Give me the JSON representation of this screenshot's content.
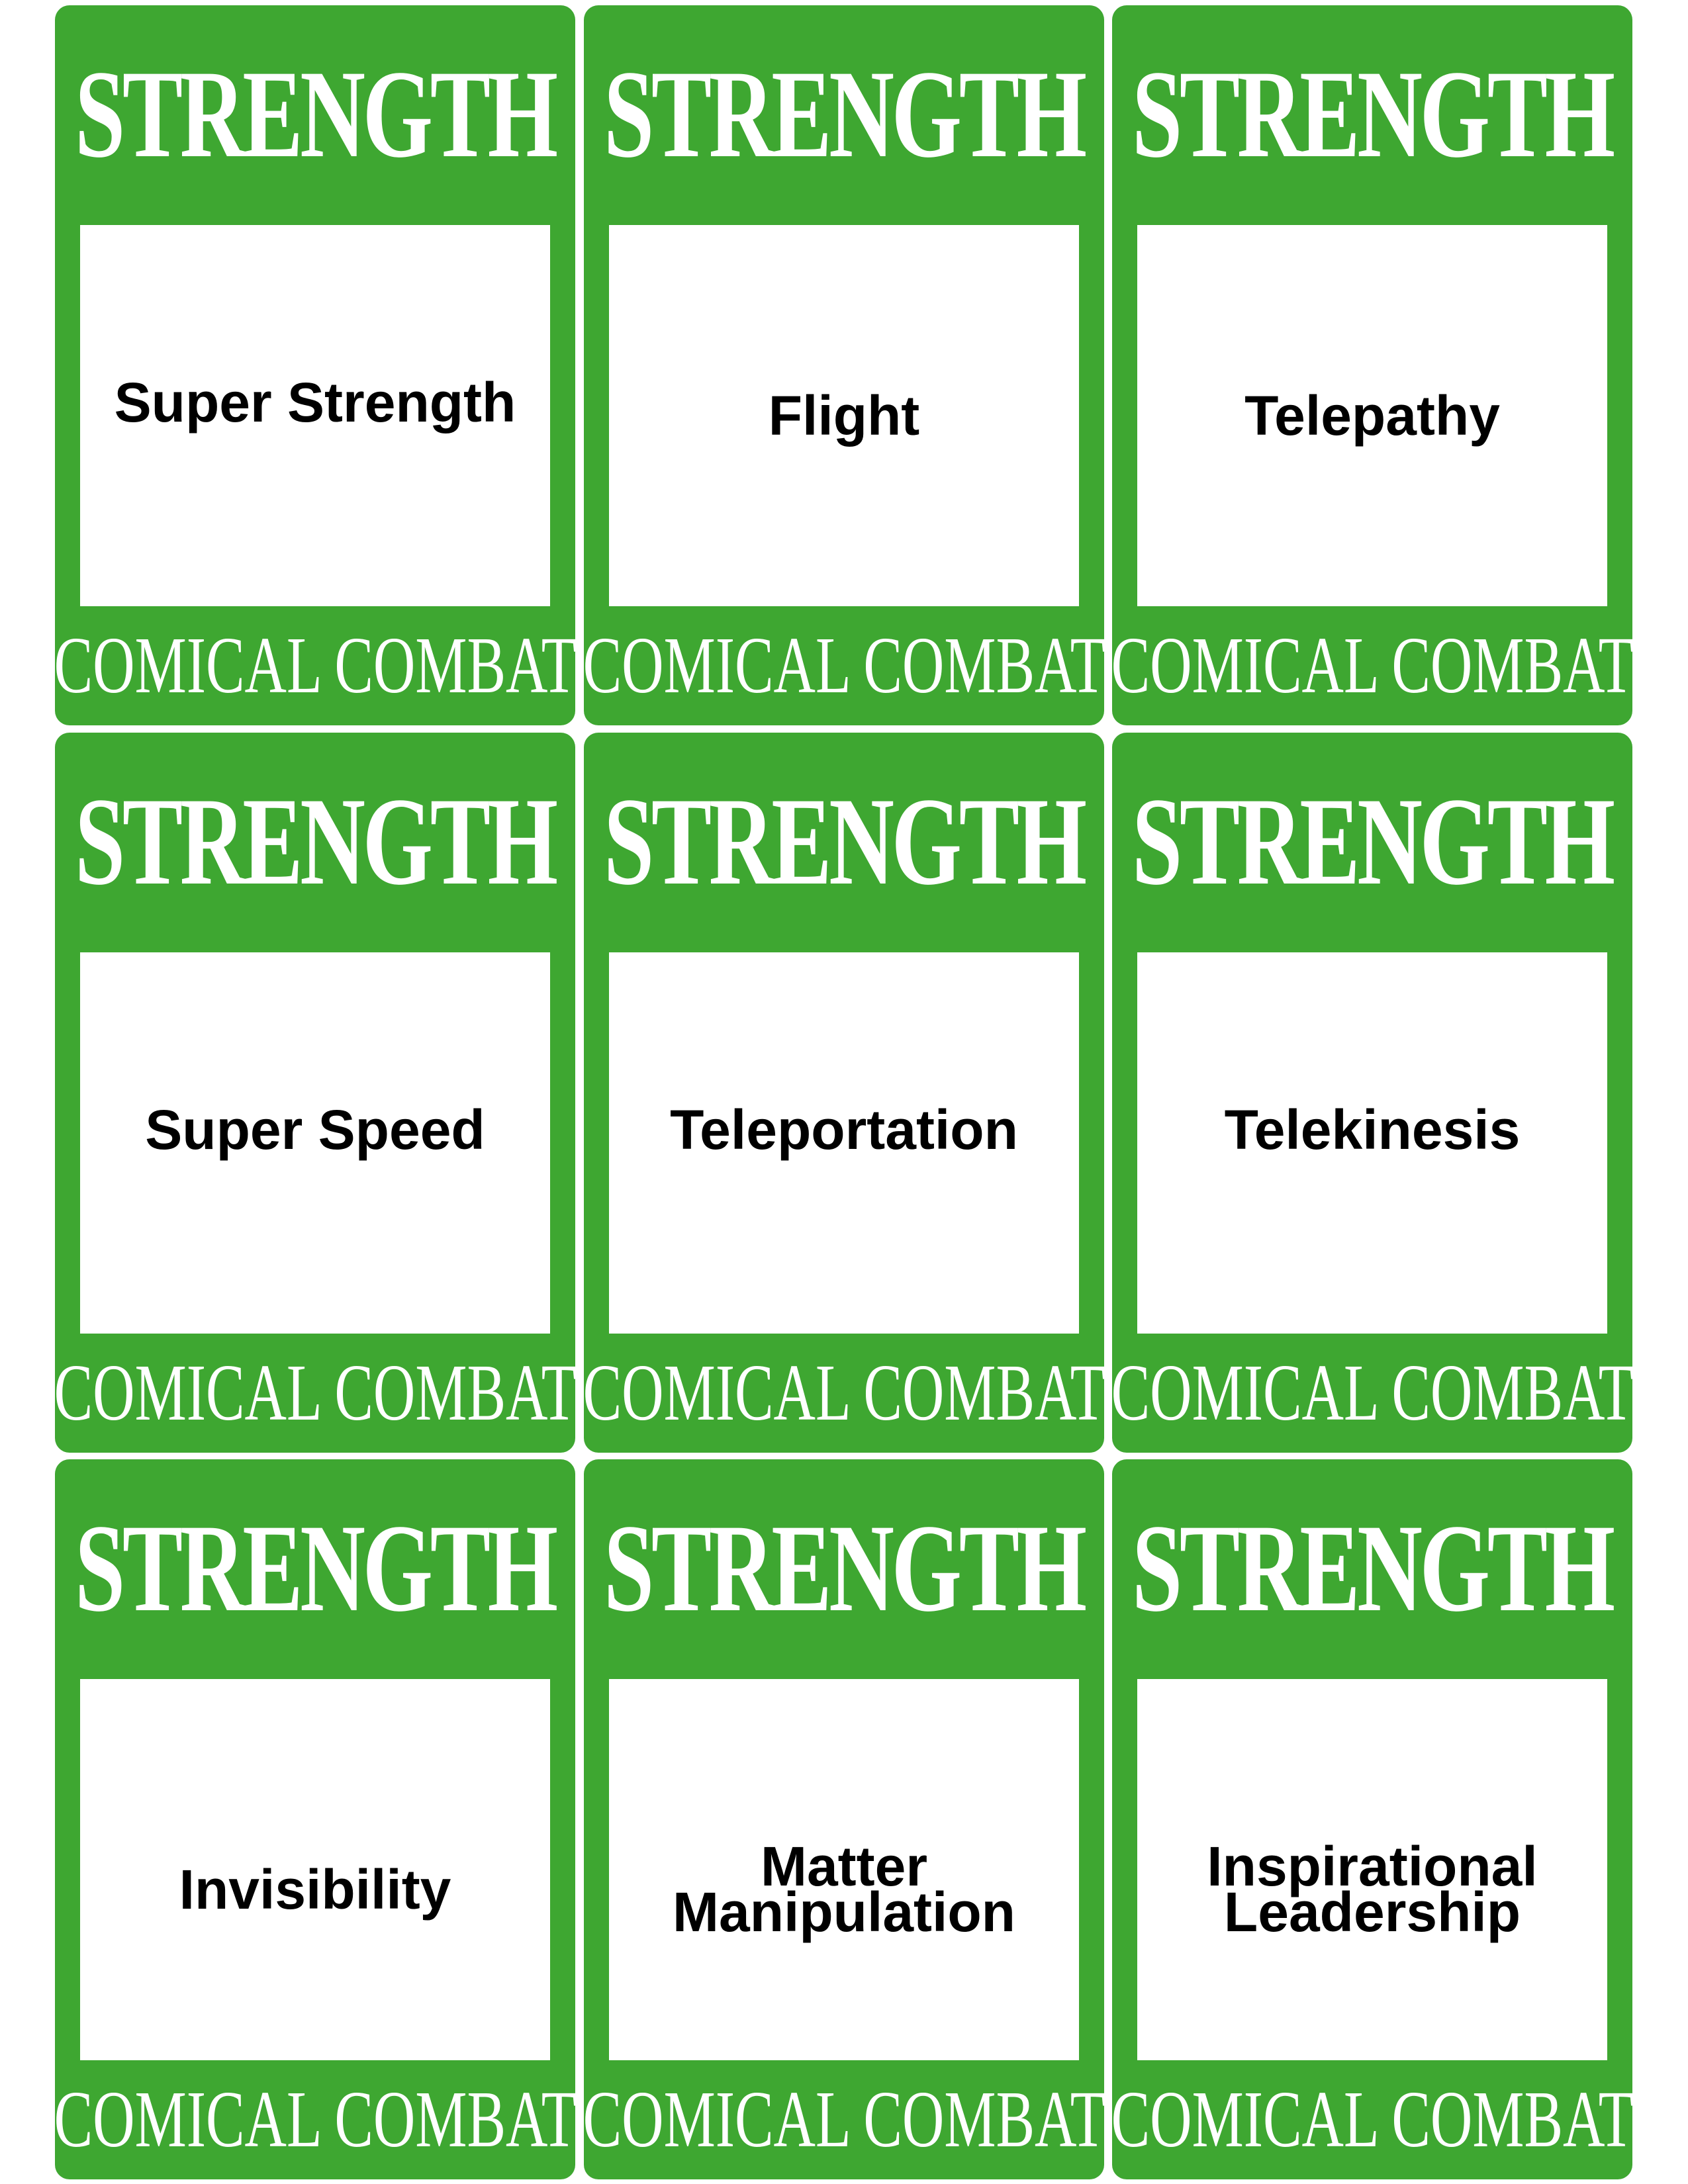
{
  "cards": [
    {
      "category": "STRENGTH",
      "power": "Super Strength",
      "footer": "COMICAL COMBAT"
    },
    {
      "category": "STRENGTH",
      "power": "Flight",
      "footer": "COMICAL COMBAT"
    },
    {
      "category": "STRENGTH",
      "power": "Telepathy",
      "footer": "COMICAL COMBAT"
    },
    {
      "category": "STRENGTH",
      "power": "Super Speed",
      "footer": "COMICAL COMBAT"
    },
    {
      "category": "STRENGTH",
      "power": "Teleportation",
      "footer": "COMICAL COMBAT"
    },
    {
      "category": "STRENGTH",
      "power": "Telekinesis",
      "footer": "COMICAL COMBAT"
    },
    {
      "category": "STRENGTH",
      "power": "Invisibility",
      "footer": "COMICAL COMBAT"
    },
    {
      "category": "STRENGTH",
      "power": "Matter\nManipulation",
      "footer": "COMICAL COMBAT"
    },
    {
      "category": "STRENGTH",
      "power": "Inspirational\nLeadership",
      "footer": "COMICAL COMBAT"
    }
  ],
  "colors": {
    "card_green": "#3ea731",
    "text_white": "#ffffff",
    "text_black": "#000000"
  }
}
